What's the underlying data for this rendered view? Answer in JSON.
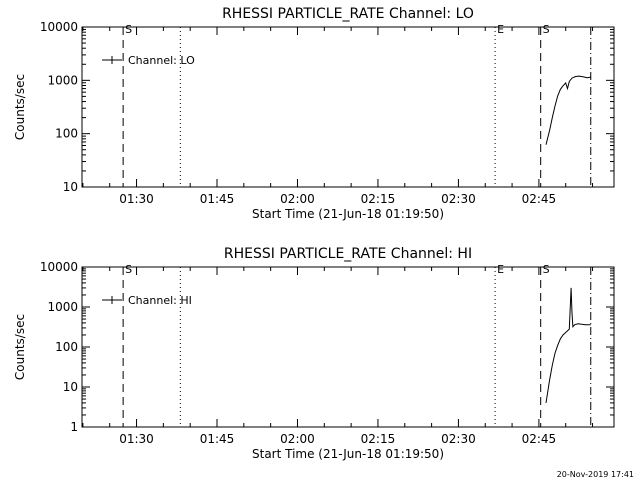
{
  "footer": {
    "stamp": "20-Nov-2019 17:41"
  },
  "chart_data": [
    {
      "type": "line",
      "title": "RHESSI PARTICLE_RATE Channel: LO",
      "xlabel": "Start Time (21-Jun-18 01:19:50)",
      "ylabel": "Counts/sec",
      "yscale": "log",
      "ylim": [
        10,
        10000
      ],
      "yticks": [
        10,
        100,
        1000,
        10000
      ],
      "yticklabels": [
        "10",
        "100",
        "1000",
        "10000"
      ],
      "xlim": [
        "01:19:50",
        "02:59:00"
      ],
      "xticks": [
        "01:30",
        "01:45",
        "02:00",
        "02:15",
        "02:30",
        "02:45"
      ],
      "legend": {
        "label": "Channel: LO",
        "placement": "top-left"
      },
      "markers": [
        {
          "time": "01:27:30",
          "style": "dashed",
          "label": "S"
        },
        {
          "time": "01:38:10",
          "style": "dotted",
          "label": ""
        },
        {
          "time": "02:36:50",
          "style": "dotted",
          "label": "E"
        },
        {
          "time": "02:45:20",
          "style": "dashed",
          "label": "S"
        },
        {
          "time": "02:54:40",
          "style": "dashdot",
          "label": ""
        }
      ],
      "series": [
        {
          "x": [
            "02:46:20",
            "02:47:00",
            "02:47:30",
            "02:48:00",
            "02:48:30",
            "02:49:00",
            "02:49:30",
            "02:50:00",
            "02:50:20",
            "02:50:40",
            "02:51:10",
            "02:51:50",
            "02:52:30",
            "02:53:20",
            "02:54:00",
            "02:54:40"
          ],
          "y": [
            62,
            115,
            200,
            330,
            510,
            680,
            790,
            890,
            700,
            950,
            1100,
            1180,
            1200,
            1160,
            1120,
            1150
          ]
        }
      ]
    },
    {
      "type": "line",
      "title": "RHESSI PARTICLE_RATE Channel: HI",
      "xlabel": "Start Time (21-Jun-18 01:19:50)",
      "ylabel": "Counts/sec",
      "yscale": "log",
      "ylim": [
        1,
        10000
      ],
      "yticks": [
        1,
        10,
        100,
        1000,
        10000
      ],
      "yticklabels": [
        "1",
        "10",
        "100",
        "1000",
        "10000"
      ],
      "xlim": [
        "01:19:50",
        "02:59:00"
      ],
      "xticks": [
        "01:30",
        "01:45",
        "02:00",
        "02:15",
        "02:30",
        "02:45"
      ],
      "legend": {
        "label": "Channel: HI",
        "placement": "top-left"
      },
      "markers": [
        {
          "time": "01:27:30",
          "style": "dashed",
          "label": "S"
        },
        {
          "time": "01:38:10",
          "style": "dotted",
          "label": ""
        },
        {
          "time": "02:36:50",
          "style": "dotted",
          "label": "E"
        },
        {
          "time": "02:45:20",
          "style": "dashed",
          "label": "S"
        },
        {
          "time": "02:54:40",
          "style": "dashdot",
          "label": ""
        }
      ],
      "series": [
        {
          "x": [
            "02:46:20",
            "02:47:00",
            "02:47:30",
            "02:48:00",
            "02:48:30",
            "02:49:00",
            "02:49:30",
            "02:50:00",
            "02:50:40",
            "02:51:00",
            "02:51:10",
            "02:51:20",
            "02:51:40",
            "02:52:20",
            "02:53:00",
            "02:53:40",
            "02:54:40"
          ],
          "y": [
            4,
            15,
            35,
            70,
            110,
            160,
            200,
            230,
            280,
            3000,
            700,
            320,
            360,
            380,
            370,
            360,
            360
          ]
        }
      ]
    }
  ]
}
